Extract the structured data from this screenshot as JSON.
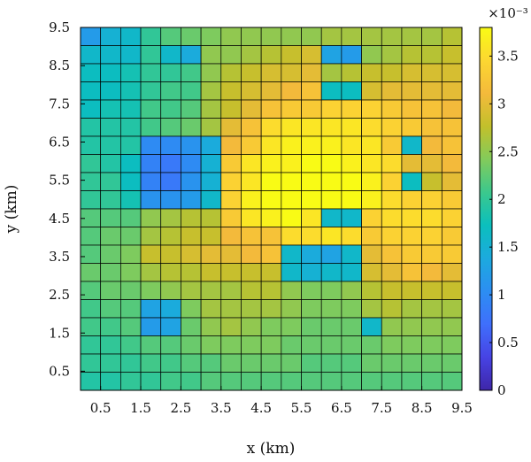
{
  "chart_data": {
    "type": "heatmap",
    "title": "",
    "xlabel": "x (km)",
    "ylabel": "y (km)",
    "x_ticks": [
      "0.5",
      "1.5",
      "2.5",
      "3.5",
      "4.5",
      "5.5",
      "6.5",
      "7.5",
      "8.5",
      "9.5"
    ],
    "y_ticks": [
      "0.5",
      "1.5",
      "2.5",
      "3.5",
      "4.5",
      "5.5",
      "6.5",
      "7.5",
      "8.5",
      "9.5"
    ],
    "x_range": [
      0,
      9.5
    ],
    "y_range": [
      0,
      9.5
    ],
    "rows_top_to_bottom": [
      [
        1.2,
        1.5,
        1.6,
        2.0,
        2.2,
        2.3,
        2.4,
        2.5,
        2.5,
        2.5,
        2.5,
        2.5,
        2.6,
        2.6,
        2.6,
        2.6,
        2.6,
        2.6,
        2.7
      ],
      [
        1.6,
        1.6,
        1.6,
        2.0,
        1.6,
        1.4,
        2.5,
        2.5,
        2.6,
        2.7,
        2.8,
        2.9,
        1.3,
        1.2,
        2.5,
        2.6,
        2.7,
        2.7,
        2.8
      ],
      [
        1.7,
        1.7,
        1.8,
        2.0,
        2.0,
        2.1,
        2.5,
        2.7,
        2.8,
        2.9,
        2.9,
        3.0,
        2.6,
        2.7,
        2.8,
        2.8,
        2.9,
        2.9,
        2.9
      ],
      [
        1.7,
        1.7,
        1.8,
        2.0,
        2.1,
        2.1,
        2.6,
        2.8,
        2.9,
        3.0,
        3.1,
        3.2,
        1.7,
        1.7,
        2.9,
        3.0,
        3.0,
        3.0,
        3.0
      ],
      [
        1.7,
        1.8,
        1.8,
        2.1,
        2.1,
        2.2,
        2.6,
        2.8,
        3.0,
        3.2,
        3.3,
        3.3,
        3.4,
        3.4,
        3.4,
        3.3,
        3.2,
        3.2,
        3.1
      ],
      [
        1.9,
        1.9,
        1.9,
        2.1,
        2.2,
        2.3,
        2.6,
        3.0,
        3.2,
        3.5,
        3.6,
        3.6,
        3.6,
        3.6,
        3.5,
        3.4,
        3.3,
        3.2,
        3.2
      ],
      [
        1.9,
        1.9,
        1.9,
        1.0,
        1.0,
        1.1,
        1.4,
        3.1,
        3.3,
        3.6,
        3.7,
        3.7,
        3.7,
        3.6,
        3.6,
        3.3,
        1.6,
        3.1,
        3.2
      ],
      [
        2.0,
        1.9,
        1.7,
        0.9,
        0.8,
        1.0,
        1.5,
        3.3,
        3.6,
        3.7,
        3.7,
        3.8,
        3.8,
        3.7,
        3.6,
        3.5,
        3.0,
        3.0,
        3.1
      ],
      [
        2.0,
        2.0,
        1.7,
        0.9,
        0.8,
        1.1,
        1.5,
        3.4,
        3.6,
        3.8,
        3.8,
        3.8,
        3.8,
        3.8,
        3.7,
        3.4,
        1.7,
        2.8,
        3.0
      ],
      [
        2.0,
        2.0,
        1.8,
        1.1,
        1.1,
        1.2,
        1.6,
        3.4,
        3.7,
        3.8,
        3.8,
        3.8,
        3.8,
        3.8,
        3.7,
        3.5,
        3.4,
        3.4,
        3.3
      ],
      [
        2.2,
        2.2,
        2.2,
        2.5,
        2.6,
        2.7,
        2.7,
        3.3,
        3.6,
        3.7,
        3.8,
        3.6,
        1.6,
        1.6,
        3.4,
        3.5,
        3.5,
        3.5,
        3.4
      ],
      [
        2.2,
        2.3,
        2.3,
        2.6,
        2.7,
        2.8,
        2.8,
        3.1,
        3.2,
        3.2,
        3.5,
        3.5,
        3.6,
        3.5,
        3.3,
        3.4,
        3.4,
        3.4,
        3.3
      ],
      [
        2.2,
        2.3,
        2.4,
        2.8,
        2.8,
        2.9,
        3.0,
        3.0,
        3.1,
        3.2,
        1.6,
        1.4,
        1.3,
        1.6,
        3.0,
        3.2,
        3.3,
        3.3,
        3.3
      ],
      [
        2.3,
        2.3,
        2.4,
        2.6,
        2.7,
        2.7,
        2.8,
        2.8,
        2.8,
        2.8,
        1.6,
        1.5,
        1.6,
        1.6,
        2.9,
        3.0,
        3.2,
        3.1,
        3.0
      ],
      [
        2.2,
        2.3,
        2.3,
        2.4,
        2.5,
        2.6,
        2.6,
        2.6,
        2.7,
        2.7,
        2.5,
        2.4,
        2.4,
        2.5,
        2.7,
        2.8,
        2.8,
        2.8,
        2.8
      ],
      [
        2.1,
        2.2,
        2.2,
        1.3,
        1.4,
        2.4,
        2.6,
        2.6,
        2.6,
        2.6,
        2.5,
        2.4,
        2.4,
        2.4,
        2.6,
        2.7,
        2.6,
        2.6,
        2.6
      ],
      [
        2.1,
        2.1,
        2.2,
        1.2,
        1.3,
        2.3,
        2.5,
        2.6,
        2.5,
        2.4,
        2.4,
        2.3,
        2.3,
        2.3,
        1.6,
        2.5,
        2.5,
        2.5,
        2.5
      ],
      [
        2.0,
        2.0,
        2.1,
        2.2,
        2.2,
        2.3,
        2.4,
        2.4,
        2.4,
        2.4,
        2.3,
        2.3,
        2.3,
        2.3,
        2.3,
        2.4,
        2.4,
        2.4,
        2.4
      ],
      [
        2.0,
        2.0,
        2.0,
        2.1,
        2.1,
        2.2,
        2.2,
        2.3,
        2.3,
        2.3,
        2.3,
        2.2,
        2.2,
        2.2,
        2.3,
        2.3,
        2.3,
        2.3,
        2.3
      ],
      [
        1.9,
        1.9,
        2.0,
        2.0,
        2.1,
        2.1,
        2.2,
        2.2,
        2.2,
        2.2,
        2.2,
        2.2,
        2.2,
        2.2,
        2.2,
        2.2,
        2.2,
        2.2,
        2.2
      ]
    ],
    "colorbar": {
      "range": [
        0,
        3.8
      ],
      "ticks": [
        "0",
        "0.5",
        "1",
        "1.5",
        "2",
        "2.5",
        "3",
        "3.5"
      ],
      "exponent_label": "×10⁻³",
      "colormap": [
        "#3e26a8",
        "#4743e4",
        "#3f6ffc",
        "#2c8ef2",
        "#1caade",
        "#0bbfbd",
        "#3bc88d",
        "#82cb5b",
        "#c2c02b",
        "#f4ba3b",
        "#fcd731",
        "#f9fb15"
      ]
    },
    "grid": false,
    "cell_edge_color": "#000000"
  }
}
